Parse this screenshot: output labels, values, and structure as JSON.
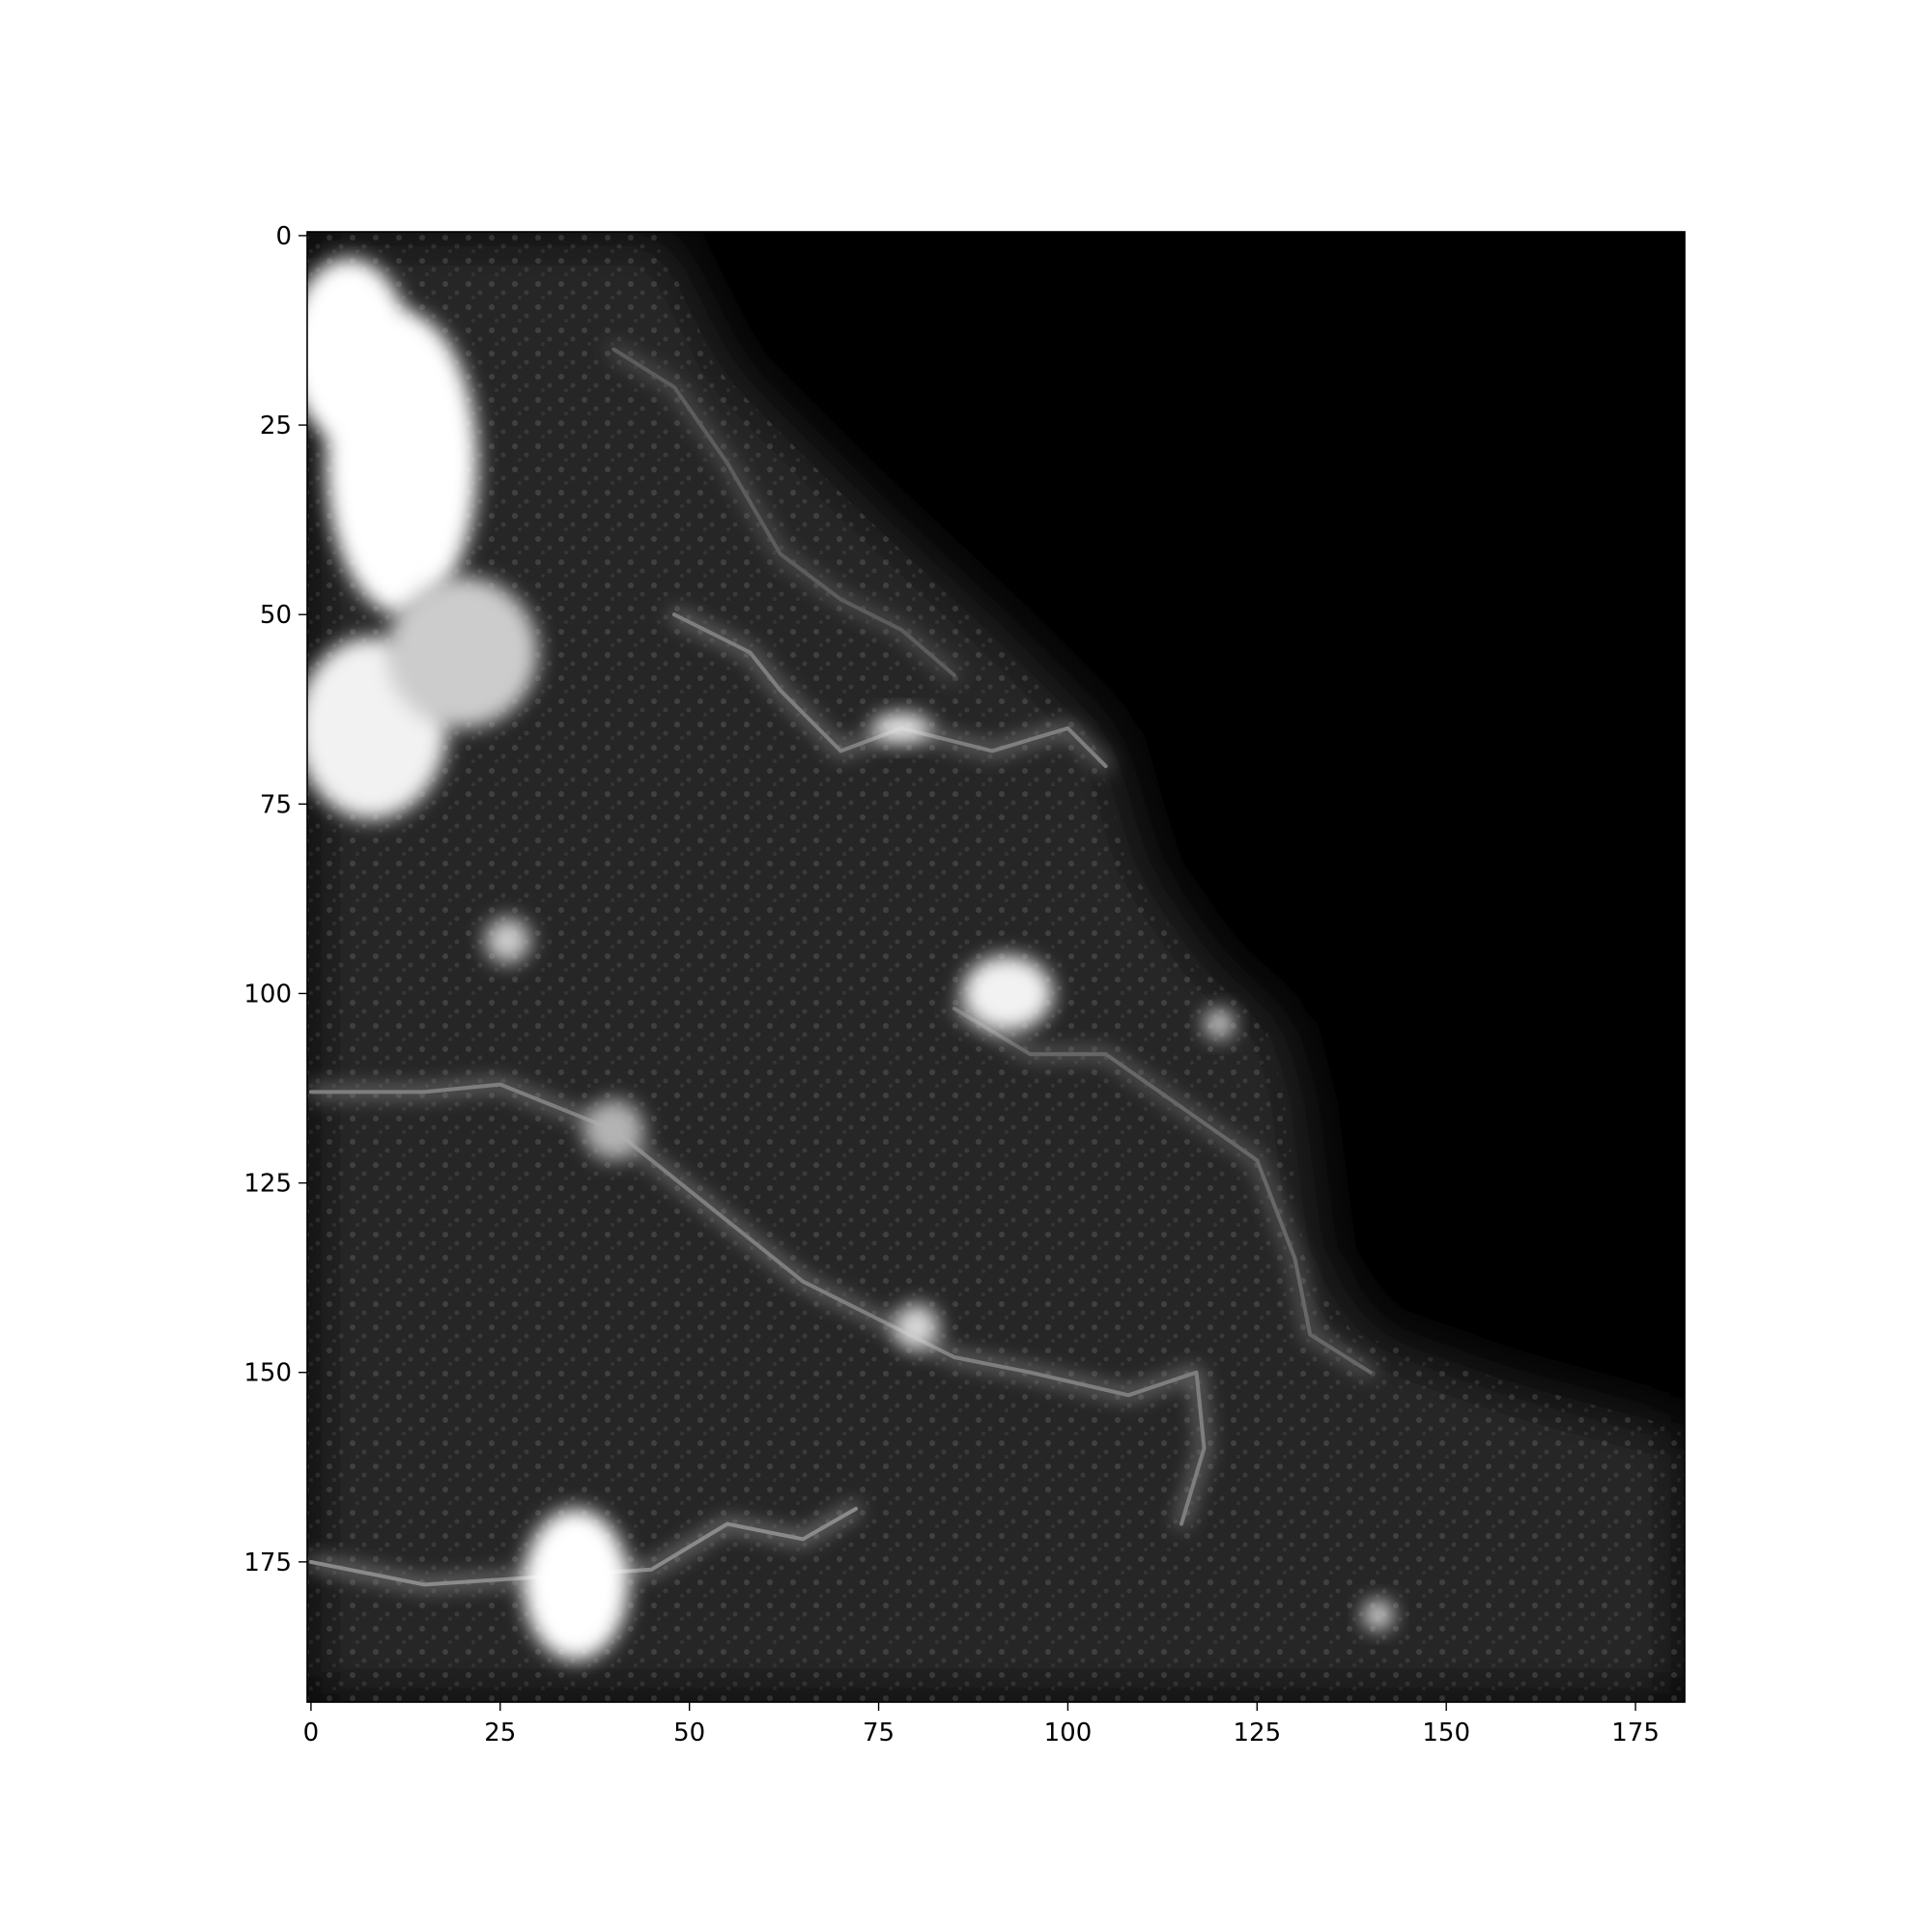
{
  "chart_data": {
    "type": "heatmap",
    "colormap": "gray",
    "background_color": "#ffffff",
    "x_ticks": [
      "0",
      "25",
      "50",
      "75",
      "100",
      "125",
      "150",
      "175"
    ],
    "y_ticks": [
      "0",
      "25",
      "50",
      "75",
      "100",
      "125",
      "150",
      "175"
    ],
    "x_range": [
      -0.5,
      181.5
    ],
    "y_range": [
      193.5,
      -0.5
    ],
    "grid": false,
    "legend": "none",
    "bright_regions": [
      {
        "x": 12,
        "y": 30,
        "rx": 10,
        "ry": 20,
        "value": 1.0
      },
      {
        "x": 5,
        "y": 15,
        "rx": 8,
        "ry": 12,
        "value": 1.0
      },
      {
        "x": 8,
        "y": 65,
        "rx": 10,
        "ry": 12,
        "value": 0.95
      },
      {
        "x": 20,
        "y": 55,
        "rx": 10,
        "ry": 10,
        "value": 0.8
      },
      {
        "x": 35,
        "y": 178,
        "rx": 7,
        "ry": 10,
        "value": 1.0
      },
      {
        "x": 92,
        "y": 100,
        "rx": 6,
        "ry": 5,
        "value": 0.95
      },
      {
        "x": 80,
        "y": 144,
        "rx": 3,
        "ry": 3,
        "value": 0.85
      },
      {
        "x": 40,
        "y": 118,
        "rx": 4,
        "ry": 4,
        "value": 0.7
      },
      {
        "x": 26,
        "y": 93,
        "rx": 3,
        "ry": 3,
        "value": 0.8
      },
      {
        "x": 78,
        "y": 65,
        "rx": 4,
        "ry": 2,
        "value": 0.9
      },
      {
        "x": 141,
        "y": 182,
        "rx": 2,
        "ry": 2,
        "value": 0.85
      },
      {
        "x": 120,
        "y": 104,
        "rx": 2,
        "ry": 2,
        "value": 0.8
      }
    ],
    "bright_paths": [
      {
        "points": [
          [
            0,
            113
          ],
          [
            15,
            113
          ],
          [
            25,
            112
          ],
          [
            40,
            118
          ],
          [
            55,
            130
          ],
          [
            65,
            138
          ],
          [
            75,
            143
          ],
          [
            85,
            148
          ],
          [
            95,
            150
          ],
          [
            108,
            153
          ],
          [
            117,
            150
          ],
          [
            118,
            160
          ],
          [
            115,
            170
          ]
        ],
        "value": 0.55
      },
      {
        "points": [
          [
            48,
            50
          ],
          [
            58,
            55
          ],
          [
            62,
            60
          ],
          [
            70,
            68
          ],
          [
            78,
            65
          ],
          [
            90,
            68
          ],
          [
            100,
            65
          ],
          [
            105,
            70
          ]
        ],
        "value": 0.55
      },
      {
        "points": [
          [
            40,
            15
          ],
          [
            48,
            20
          ],
          [
            55,
            30
          ],
          [
            62,
            42
          ],
          [
            70,
            48
          ],
          [
            78,
            52
          ],
          [
            85,
            58
          ]
        ],
        "value": 0.4
      },
      {
        "points": [
          [
            0,
            175
          ],
          [
            15,
            178
          ],
          [
            30,
            177
          ],
          [
            45,
            176
          ],
          [
            55,
            170
          ],
          [
            65,
            172
          ],
          [
            72,
            168
          ]
        ],
        "value": 0.6
      },
      {
        "points": [
          [
            85,
            102
          ],
          [
            95,
            108
          ],
          [
            105,
            108
          ],
          [
            115,
            115
          ],
          [
            125,
            122
          ],
          [
            130,
            135
          ],
          [
            132,
            145
          ],
          [
            140,
            150
          ]
        ],
        "value": 0.45
      }
    ]
  }
}
